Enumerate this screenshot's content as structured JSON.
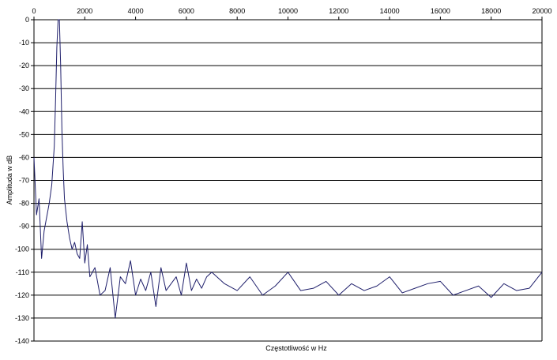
{
  "chart_data": {
    "type": "line",
    "title": "",
    "xlabel": "Częstotliwość w Hz",
    "ylabel": "Amplituda w dB",
    "xlim": [
      0,
      20000
    ],
    "ylim": [
      -140,
      0
    ],
    "x_ticks": [
      0,
      2000,
      4000,
      6000,
      8000,
      10000,
      12000,
      14000,
      16000,
      18000,
      20000
    ],
    "y_ticks": [
      0,
      -10,
      -20,
      -30,
      -40,
      -50,
      -60,
      -70,
      -80,
      -90,
      -100,
      -110,
      -120,
      -130,
      -140
    ],
    "x_axis_position": "top",
    "grid": "horizontal",
    "line_color": "#1f1f6b",
    "series": [
      {
        "x": [
          0,
          100,
          200,
          300,
          400,
          500,
          600,
          700,
          800,
          850,
          900,
          950,
          1000,
          1050,
          1100,
          1150,
          1200,
          1300,
          1400,
          1500,
          1600,
          1700,
          1800,
          1900,
          2000,
          2100,
          2200,
          2400,
          2600,
          2800,
          3000,
          3200,
          3400,
          3600,
          3800,
          4000,
          4200,
          4400,
          4600,
          4800,
          5000,
          5200,
          5400,
          5600,
          5800,
          6000,
          6200,
          6400,
          6600,
          6800,
          7000,
          7500,
          8000,
          8500,
          9000,
          9500,
          10000,
          10500,
          11000,
          11500,
          12000,
          12500,
          13000,
          13500,
          14000,
          14500,
          15000,
          15500,
          16000,
          16500,
          17000,
          17500,
          18000,
          18500,
          19000,
          19500,
          20000
        ],
        "values": [
          -60,
          -85,
          -78,
          -104,
          -92,
          -86,
          -80,
          -72,
          -55,
          -35,
          -12,
          0,
          0,
          -20,
          -48,
          -65,
          -78,
          -88,
          -95,
          -100,
          -97,
          -102,
          -104,
          -88,
          -106,
          -98,
          -112,
          -108,
          -120,
          -118,
          -108,
          -130,
          -112,
          -115,
          -105,
          -120,
          -113,
          -118,
          -110,
          -125,
          -108,
          -118,
          -115,
          -112,
          -120,
          -106,
          -118,
          -113,
          -117,
          -112,
          -110,
          -115,
          -118,
          -112,
          -120,
          -116,
          -110,
          -118,
          -117,
          -114,
          -120,
          -115,
          -118,
          -116,
          -112,
          -119,
          -117,
          -115,
          -114,
          -120,
          -118,
          -116,
          -121,
          -115,
          -118,
          -117,
          -110
        ]
      }
    ]
  }
}
